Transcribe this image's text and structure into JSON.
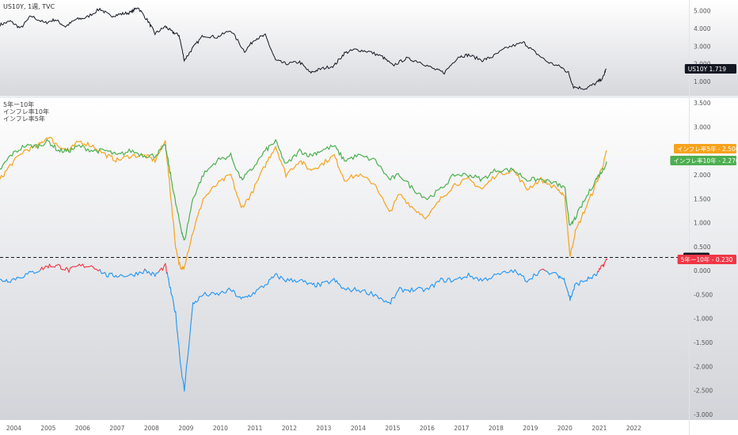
{
  "header": {
    "symbol_line": "US10Y, 1週, TVC"
  },
  "lower_legend": [
    "5年ー10年",
    "インフレ率10年",
    "インフレ率5年"
  ],
  "colors": {
    "us10y": "#131722",
    "inflation5": "#f7a21b",
    "inflation10": "#4caf50",
    "spread": "#2196f3",
    "spread_positive": "#f23645",
    "refline": "#131722"
  },
  "chart_data": [
    {
      "type": "line",
      "title": "US10Y, 1週, TVC",
      "ylim": [
        0.2,
        5.6
      ],
      "y_ticks": [
        "5.000",
        "4.000",
        "3.000",
        "2.000",
        "1.000"
      ],
      "y_tick_values": [
        5,
        4,
        3,
        2,
        1
      ],
      "last_value_label": {
        "name": "US10Y",
        "value": "1.719"
      },
      "series": [
        {
          "name": "US10Y",
          "x": [
            2003.6,
            2003.9,
            2004.2,
            2004.5,
            2004.9,
            2005.2,
            2005.5,
            2005.8,
            2006.1,
            2006.5,
            2006.8,
            2007.1,
            2007.4,
            2007.6,
            2007.9,
            2008.1,
            2008.4,
            2008.6,
            2008.8,
            2008.95,
            2009.2,
            2009.5,
            2009.9,
            2010.3,
            2010.7,
            2011.0,
            2011.3,
            2011.6,
            2011.9,
            2012.3,
            2012.6,
            2012.9,
            2013.3,
            2013.6,
            2013.9,
            2014.3,
            2014.7,
            2015.0,
            2015.4,
            2015.8,
            2016.2,
            2016.5,
            2016.9,
            2017.2,
            2017.6,
            2017.9,
            2018.3,
            2018.8,
            2019.1,
            2019.5,
            2019.9,
            2020.1,
            2020.25,
            2020.6,
            2020.9,
            2021.1,
            2021.2
          ],
          "values": [
            4.2,
            4.4,
            4.0,
            4.7,
            4.3,
            4.5,
            4.1,
            4.5,
            4.6,
            5.1,
            4.7,
            4.8,
            4.9,
            5.2,
            4.4,
            3.7,
            4.1,
            3.8,
            3.6,
            2.2,
            2.9,
            3.6,
            3.5,
            3.9,
            2.7,
            3.4,
            3.6,
            2.2,
            2.0,
            2.1,
            1.5,
            1.7,
            1.9,
            2.6,
            2.8,
            2.7,
            2.4,
            1.9,
            2.3,
            2.1,
            1.7,
            1.5,
            2.4,
            2.5,
            2.2,
            2.4,
            2.9,
            3.2,
            2.7,
            2.1,
            1.8,
            1.5,
            0.7,
            0.6,
            0.9,
            1.2,
            1.72
          ]
        }
      ]
    },
    {
      "type": "line",
      "ylim": [
        -3.1,
        3.6
      ],
      "y_ticks": [
        "3.500",
        "3.000",
        "2.500",
        "2.000",
        "1.500",
        "1.000",
        "0.500",
        "0.000",
        "-0.500",
        "-1.000",
        "-1.500",
        "-2.000",
        "-2.500",
        "-3.000"
      ],
      "y_tick_values": [
        3.5,
        3.0,
        2.5,
        2.0,
        1.5,
        1.0,
        0.5,
        0.0,
        -0.5,
        -1.0,
        -1.5,
        -2.0,
        -2.5,
        -3.0
      ],
      "x_ticks": [
        "2004",
        "2005",
        "2006",
        "2007",
        "2008",
        "2009",
        "2010",
        "2011",
        "2012",
        "2013",
        "2014",
        "2015",
        "2016",
        "2017",
        "2018",
        "2019",
        "2020",
        "2021",
        "2022"
      ],
      "x_tick_values": [
        2004,
        2005,
        2006,
        2007,
        2008,
        2009,
        2010,
        2011,
        2012,
        2013,
        2014,
        2015,
        2016,
        2017,
        2018,
        2019,
        2020,
        2021,
        2022
      ],
      "xlim": [
        2003.6,
        2023.6
      ],
      "reference_line": {
        "value": 0.274,
        "label": "0.274"
      },
      "last_value_labels": [
        {
          "name": "インフレ率5年",
          "value": "2.500"
        },
        {
          "name": "インフレ率10年",
          "value": "2.270"
        },
        {
          "name": "5年ー10年",
          "value": "0.230"
        }
      ],
      "series": [
        {
          "name": "インフレ率5年",
          "x": [
            2003.6,
            2003.9,
            2004.3,
            2004.7,
            2005.0,
            2005.3,
            2005.6,
            2005.9,
            2006.3,
            2006.7,
            2007.0,
            2007.4,
            2007.8,
            2008.1,
            2008.4,
            2008.55,
            2008.7,
            2008.85,
            2008.95,
            2009.2,
            2009.5,
            2009.9,
            2010.3,
            2010.6,
            2010.9,
            2011.3,
            2011.6,
            2011.9,
            2012.3,
            2012.6,
            2012.9,
            2013.3,
            2013.6,
            2014.0,
            2014.5,
            2014.9,
            2015.2,
            2015.6,
            2016.0,
            2016.4,
            2016.8,
            2017.2,
            2017.6,
            2018.0,
            2018.5,
            2018.9,
            2019.3,
            2019.8,
            2020.0,
            2020.15,
            2020.3,
            2020.6,
            2020.9,
            2021.1,
            2021.22
          ],
          "values": [
            1.9,
            2.2,
            2.5,
            2.6,
            2.8,
            2.6,
            2.5,
            2.7,
            2.6,
            2.4,
            2.3,
            2.4,
            2.4,
            2.3,
            2.7,
            1.6,
            0.5,
            0.0,
            0.1,
            0.8,
            1.5,
            1.8,
            2.0,
            1.3,
            1.6,
            2.2,
            2.6,
            2.0,
            2.3,
            2.1,
            2.2,
            2.4,
            1.9,
            2.0,
            1.8,
            1.2,
            1.6,
            1.3,
            1.1,
            1.5,
            1.8,
            1.9,
            1.7,
            2.0,
            2.1,
            1.7,
            1.9,
            1.7,
            1.5,
            0.3,
            0.8,
            1.3,
            1.8,
            2.2,
            2.5
          ]
        },
        {
          "name": "インフレ率10年",
          "x": [
            2003.6,
            2003.9,
            2004.3,
            2004.7,
            2005.0,
            2005.3,
            2005.6,
            2005.9,
            2006.3,
            2006.7,
            2007.0,
            2007.4,
            2007.8,
            2008.1,
            2008.4,
            2008.55,
            2008.7,
            2008.85,
            2008.95,
            2009.2,
            2009.5,
            2009.9,
            2010.3,
            2010.6,
            2010.9,
            2011.3,
            2011.6,
            2011.9,
            2012.3,
            2012.6,
            2012.9,
            2013.3,
            2013.6,
            2014.0,
            2014.5,
            2014.9,
            2015.2,
            2015.6,
            2016.0,
            2016.4,
            2016.8,
            2017.2,
            2017.6,
            2018.0,
            2018.5,
            2018.9,
            2019.3,
            2019.8,
            2020.0,
            2020.15,
            2020.3,
            2020.6,
            2020.9,
            2021.1,
            2021.22
          ],
          "values": [
            2.1,
            2.4,
            2.6,
            2.6,
            2.7,
            2.5,
            2.5,
            2.6,
            2.5,
            2.5,
            2.4,
            2.5,
            2.4,
            2.4,
            2.6,
            2.0,
            1.4,
            0.9,
            0.6,
            1.5,
            2.0,
            2.3,
            2.4,
            1.9,
            2.1,
            2.5,
            2.7,
            2.2,
            2.5,
            2.4,
            2.5,
            2.6,
            2.3,
            2.4,
            2.3,
            1.9,
            2.0,
            1.7,
            1.5,
            1.7,
            2.0,
            2.0,
            1.9,
            2.1,
            2.1,
            1.9,
            1.9,
            1.8,
            1.7,
            0.9,
            1.1,
            1.5,
            1.9,
            2.1,
            2.27
          ]
        },
        {
          "name": "5年ー10年",
          "x": [
            2003.6,
            2003.9,
            2004.3,
            2004.7,
            2005.0,
            2005.3,
            2005.6,
            2005.9,
            2006.3,
            2006.7,
            2007.0,
            2007.4,
            2007.8,
            2008.1,
            2008.4,
            2008.55,
            2008.7,
            2008.85,
            2008.95,
            2009.2,
            2009.5,
            2009.9,
            2010.3,
            2010.6,
            2010.9,
            2011.3,
            2011.6,
            2011.9,
            2012.3,
            2012.6,
            2012.9,
            2013.3,
            2013.6,
            2014.0,
            2014.5,
            2014.9,
            2015.2,
            2015.6,
            2016.0,
            2016.4,
            2016.8,
            2017.2,
            2017.6,
            2018.0,
            2018.5,
            2018.9,
            2019.3,
            2019.8,
            2020.0,
            2020.15,
            2020.3,
            2020.6,
            2020.9,
            2021.1,
            2021.22
          ],
          "values": [
            -0.2,
            -0.2,
            -0.1,
            0.0,
            0.1,
            0.1,
            0.0,
            0.1,
            0.1,
            -0.1,
            -0.1,
            -0.1,
            0.0,
            -0.1,
            0.1,
            -0.4,
            -0.9,
            -2.0,
            -2.5,
            -0.7,
            -0.5,
            -0.5,
            -0.4,
            -0.6,
            -0.5,
            -0.3,
            -0.1,
            -0.2,
            -0.2,
            -0.3,
            -0.3,
            -0.2,
            -0.4,
            -0.4,
            -0.5,
            -0.7,
            -0.4,
            -0.4,
            -0.4,
            -0.2,
            -0.2,
            -0.1,
            -0.2,
            -0.1,
            0.0,
            -0.2,
            0.0,
            -0.1,
            -0.2,
            -0.6,
            -0.3,
            -0.2,
            -0.1,
            0.1,
            0.23
          ]
        }
      ]
    }
  ]
}
